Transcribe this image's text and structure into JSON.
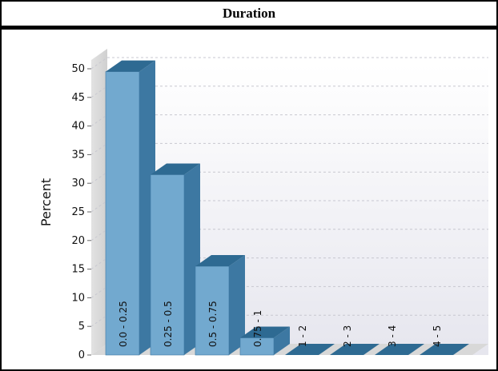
{
  "chart_data": {
    "type": "bar",
    "title": "Duration",
    "ylabel": "Percent",
    "xlabel": "",
    "ylim": [
      0,
      50
    ],
    "yticks": [
      0,
      5,
      10,
      15,
      20,
      25,
      30,
      35,
      40,
      45,
      50
    ],
    "categories": [
      "0.0 - 0.25",
      "0.25 - 0.5",
      "0.5 - 0.75",
      "0.75 - 1",
      "1 - 2",
      "2 - 3",
      "3 - 4",
      "4 - 5"
    ],
    "values": [
      49.5,
      31.5,
      15.5,
      3,
      0,
      0,
      0,
      0
    ],
    "grid": true,
    "style": "3d",
    "colors": {
      "bar_front": "#72A9CF",
      "bar_top": "#2E6A92",
      "bar_side": "#3D78A2"
    }
  }
}
